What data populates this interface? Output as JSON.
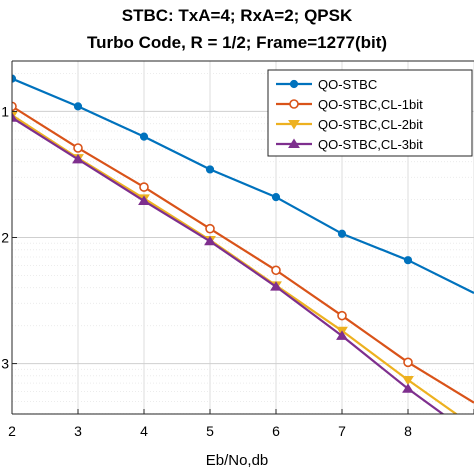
{
  "chart_data": {
    "type": "line",
    "title": [
      "STBC: TxA=4; RxA=2; QPSK",
      "Turbo Code, R = 1/2; Frame=1277(bit)"
    ],
    "xlabel": "Eb/No,db",
    "ylabel": "",
    "xlim": [
      2,
      9
    ],
    "ylim_log10": [
      -3.4,
      -0.6
    ],
    "yscale": "log",
    "grid": true,
    "legend_position": "top-right",
    "x_tick_labels": [
      "2",
      "3",
      "4",
      "5",
      "6",
      "7",
      "8"
    ],
    "y_tick_labels": [
      "1",
      "2",
      "3"
    ],
    "x": [
      2,
      3,
      4,
      5,
      6,
      7,
      8,
      9
    ],
    "series": [
      {
        "name": "QO-STBC",
        "color": "#0072BD",
        "marker": "circle-filled",
        "values_log10": [
          -0.74,
          -0.96,
          -1.2,
          -1.46,
          -1.68,
          -1.97,
          -2.18,
          -2.44
        ]
      },
      {
        "name": "QO-STBC,CL-1bit",
        "color": "#D95319",
        "marker": "circle-open",
        "values_log10": [
          -0.96,
          -1.29,
          -1.6,
          -1.93,
          -2.26,
          -2.62,
          -2.99,
          -3.31
        ]
      },
      {
        "name": "QO-STBC,CL-2bit",
        "color": "#EDB120",
        "marker": "triangle-down",
        "values_log10": [
          -1.03,
          -1.37,
          -1.69,
          -2.02,
          -2.38,
          -2.74,
          -3.13,
          -3.5
        ]
      },
      {
        "name": "QO-STBC,CL-3bit",
        "color": "#7E2F8E",
        "marker": "triangle-up",
        "values_log10": [
          -1.05,
          -1.38,
          -1.71,
          -2.03,
          -2.39,
          -2.78,
          -3.2,
          -3.58
        ]
      }
    ]
  }
}
